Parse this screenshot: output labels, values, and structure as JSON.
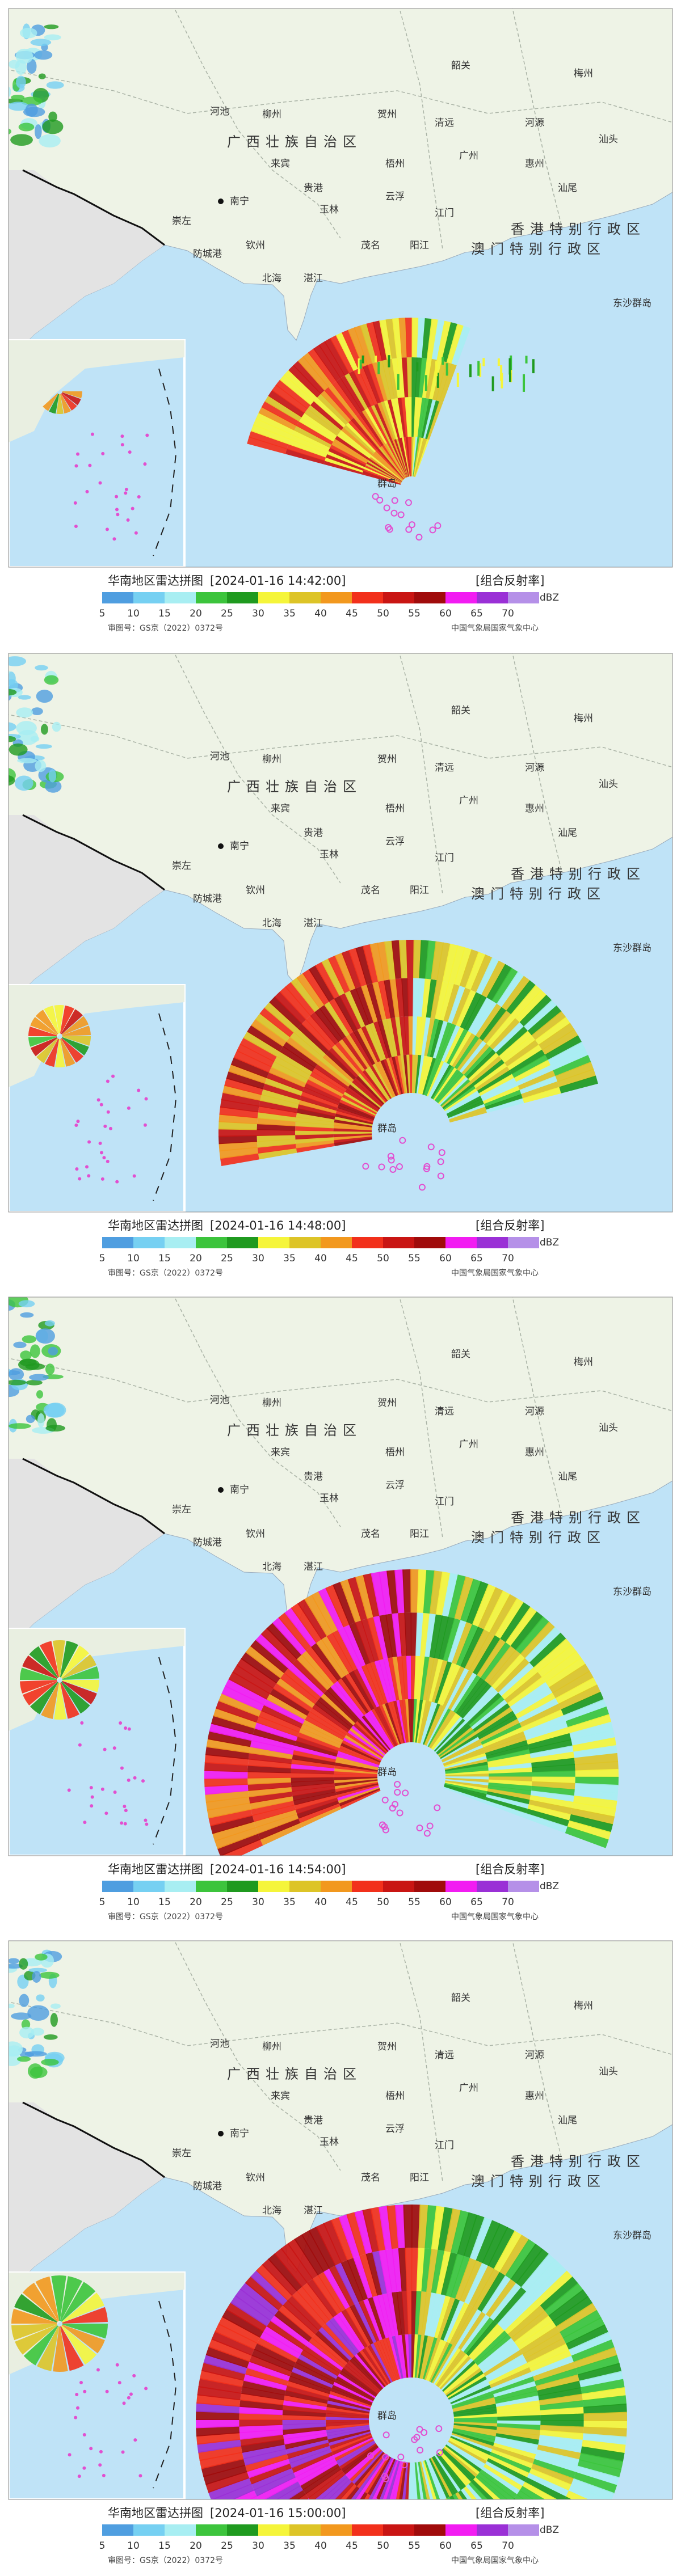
{
  "panels": [
    {
      "title": "华南地区雷达拼图",
      "time": "[2024-01-16 14:42:00]",
      "product": "[组合反射率]"
    },
    {
      "title": "华南地区雷达拼图",
      "time": "[2024-01-16 14:48:00]",
      "product": "[组合反射率]"
    },
    {
      "title": "华南地区雷达拼图",
      "time": "[2024-01-16 14:54:00]",
      "product": "[组合反射率]"
    },
    {
      "title": "华南地区雷达拼图",
      "time": "[2024-01-16 15:00:00]",
      "product": "[组合反射率]"
    }
  ],
  "legend": {
    "unit": "dBZ",
    "levels": [
      {
        "value": 5,
        "color": "#4f9ee0"
      },
      {
        "value": 10,
        "color": "#76d0f2"
      },
      {
        "value": 15,
        "color": "#a8eef2"
      },
      {
        "value": 20,
        "color": "#3cc43c"
      },
      {
        "value": 25,
        "color": "#1f9a1f"
      },
      {
        "value": 30,
        "color": "#f5f53a"
      },
      {
        "value": 35,
        "color": "#ddc427"
      },
      {
        "value": 40,
        "color": "#f2981e"
      },
      {
        "value": 45,
        "color": "#f2301b"
      },
      {
        "value": 50,
        "color": "#c91513"
      },
      {
        "value": 55,
        "color": "#a00b0b"
      },
      {
        "value": 60,
        "color": "#f21cf2"
      },
      {
        "value": 65,
        "color": "#9a30d6"
      },
      {
        "value": 70,
        "color": "#b590e8"
      }
    ]
  },
  "map_labels": [
    "河池",
    "柳州",
    "广西壮族自治区",
    "南宁",
    "来宾",
    "贵港",
    "玉林",
    "钦州",
    "北海",
    "防城港",
    "崇左",
    "梧州",
    "贺州",
    "云浮",
    "茂名",
    "湛江",
    "阳江",
    "江门",
    "广州",
    "清远",
    "韶关",
    "河源",
    "惠州",
    "梅州",
    "汕头",
    "汕尾",
    "香港特别行政区",
    "澳门特别行政区",
    "东沙群岛",
    "群岛"
  ],
  "footer": {
    "approval": "审图号：GS京（2022）0372号",
    "agency": "中国气象局国家气象中心"
  }
}
